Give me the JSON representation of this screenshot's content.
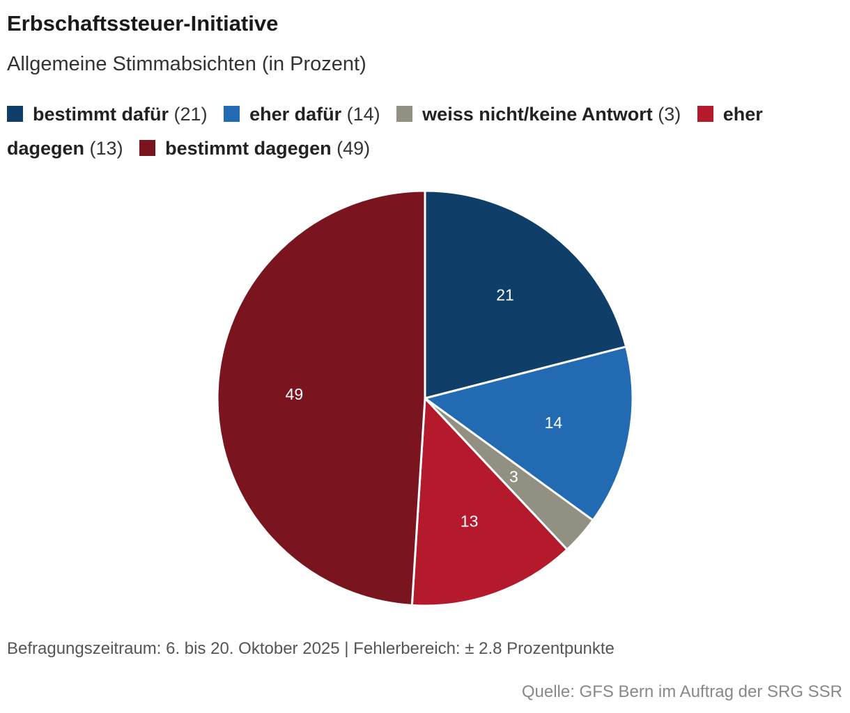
{
  "chart_data": {
    "type": "pie",
    "title": "Erbschaftssteuer-Initiative",
    "subtitle": "Allgemeine Stimmabsichten (in Prozent)",
    "slices": [
      {
        "label": "bestimmt dafür",
        "value": 21,
        "value_text": "(21)",
        "color": "#0f3e68"
      },
      {
        "label": "eher dafür",
        "value": 14,
        "value_text": "(14)",
        "color": "#226bb2"
      },
      {
        "label": "weiss nicht/keine Antwort",
        "value": 3,
        "value_text": "(3)",
        "color": "#929083"
      },
      {
        "label": "eher dagegen",
        "value": 13,
        "value_text": "(13)",
        "color": "#b41a2c"
      },
      {
        "label": "bestimmt dagegen",
        "value": 49,
        "value_text": "(49)",
        "color": "#7a1520"
      }
    ],
    "start_angle_deg": 0,
    "direction": "clockwise",
    "slice_border_color": "#ffffff",
    "data_label_color": "#ffffff",
    "legend_position": "top"
  },
  "footnote": "Befragungszeitraum: 6. bis 20. Oktober 2025 | Fehlerbereich: ± 2.8 Prozentpunkte",
  "source": "Quelle: GFS Bern im Auftrag der SRG SSR"
}
